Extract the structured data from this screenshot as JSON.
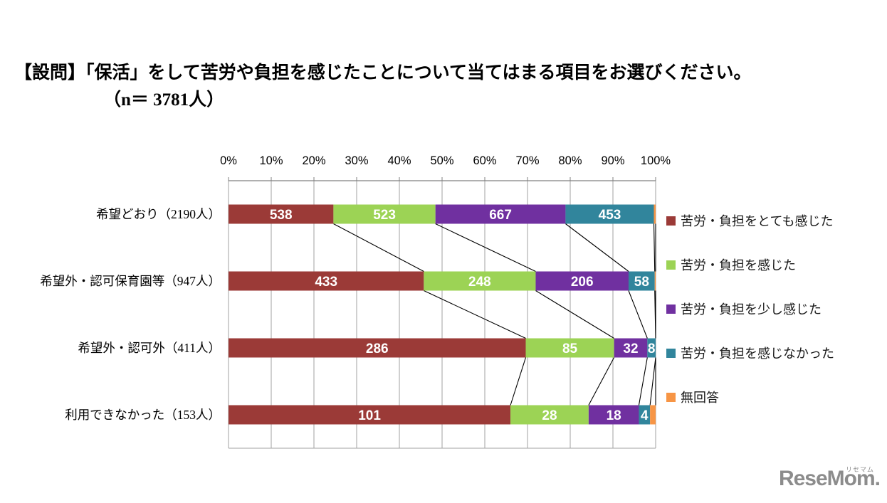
{
  "title": {
    "line1": "【設問】「保活」をして苦労や負担を感じたことについて当てはまる項目をお選びください。",
    "line2": "（n＝ 3781人）"
  },
  "chart_data": {
    "type": "bar",
    "variant": "horizontal-100pct-stacked",
    "categories": [
      "希望どおり（2190人）",
      "希望外・認可保育園等（947人）",
      "希望外・認可外（411人）",
      "利用できなかった（153人）"
    ],
    "category_totals": [
      2190,
      947,
      411,
      153
    ],
    "series": [
      {
        "name": "苦労・負担をとても感じた",
        "color": "#9b3a37",
        "values": [
          538,
          433,
          286,
          101
        ]
      },
      {
        "name": "苦労・負担を感じた",
        "color": "#9cd355",
        "values": [
          523,
          248,
          85,
          28
        ]
      },
      {
        "name": "苦労・負担を少し感じた",
        "color": "#7030a0",
        "values": [
          667,
          206,
          32,
          18
        ]
      },
      {
        "name": "苦労・負担を感じなかった",
        "color": "#31859c",
        "values": [
          453,
          58,
          8,
          4
        ]
      },
      {
        "name": "無回答",
        "color": "#f79545",
        "values": [
          9,
          2,
          0,
          2
        ]
      }
    ],
    "x_axis": {
      "position": "top",
      "min": 0,
      "max": 100,
      "ticks": [
        "0%",
        "10%",
        "20%",
        "30%",
        "40%",
        "50%",
        "60%",
        "70%",
        "80%",
        "90%",
        "100%"
      ]
    },
    "grid": true,
    "series_lines": true,
    "legend_position": "right",
    "bar_label_color": "#ffffff",
    "gridline_color": "#a0a0a0",
    "axis_line_color": "#808080",
    "series_line_color": "#000000"
  },
  "logo": {
    "text": "ReseMom.",
    "ruby": "リセマム",
    "color": "#8c8c8c"
  }
}
